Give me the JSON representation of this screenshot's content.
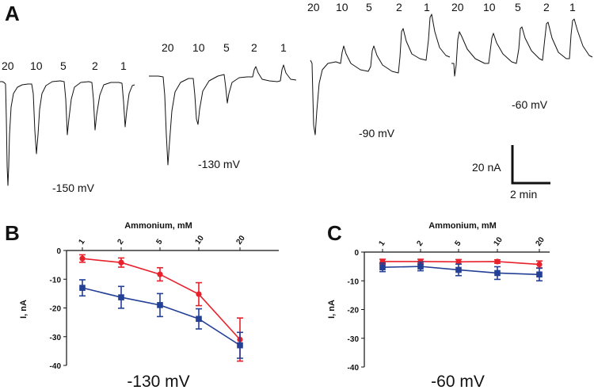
{
  "panel_letters": {
    "a": "A",
    "b": "B",
    "c": "C"
  },
  "panel_a": {
    "traces": [
      {
        "voltage": "-150 mV",
        "concentrations": [
          "20",
          "10",
          "5",
          "2",
          "1"
        ],
        "direction": "inward"
      },
      {
        "voltage": "-130 mV",
        "concentrations": [
          "20",
          "10",
          "5",
          "2",
          "1"
        ],
        "direction": "inward"
      },
      {
        "voltage": "-90 mV",
        "concentrations": [
          "20",
          "10",
          "5",
          "2",
          "1"
        ],
        "direction": "mixed"
      },
      {
        "voltage": "-60 mV",
        "concentrations": [
          "20",
          "10",
          "5",
          "2",
          "1"
        ],
        "direction": "outward"
      }
    ],
    "scale_bar": {
      "current": "20 nA",
      "time": "2 min"
    }
  },
  "chart_data": [
    {
      "type": "line",
      "panel": "B",
      "xlabel": "Ammonium, mM",
      "ylabel": "I, nA",
      "categories": [
        "1",
        "2",
        "5",
        "10",
        "20"
      ],
      "ylim": [
        -40,
        0
      ],
      "yticks": [
        "0",
        "-10",
        "-20",
        "-30",
        "-40"
      ],
      "grid": false,
      "series": [
        {
          "color": "#e8212b",
          "marker": "circle",
          "values": [
            -2.8,
            -4.2,
            -8.3,
            -15.2,
            -31.0
          ],
          "errors": [
            1.3,
            1.6,
            2.3,
            4.0,
            7.5
          ]
        },
        {
          "color": "#233f96",
          "marker": "square",
          "values": [
            -13.0,
            -16.3,
            -19.0,
            -23.8,
            -33.0
          ],
          "errors": [
            2.8,
            3.8,
            4.0,
            3.5,
            4.5
          ]
        }
      ],
      "caption": "-130 mV"
    },
    {
      "type": "line",
      "panel": "C",
      "xlabel": "Ammonium, mM",
      "ylabel": "I, nA",
      "categories": [
        "1",
        "2",
        "5",
        "10",
        "20"
      ],
      "ylim": [
        -40,
        0
      ],
      "yticks": [
        "0",
        "-10",
        "-20",
        "-30",
        "-40"
      ],
      "grid": false,
      "series": [
        {
          "color": "#e8212b",
          "marker": "circle",
          "values": [
            -3.3,
            -3.3,
            -3.4,
            -3.3,
            -4.3
          ],
          "errors": [
            0.8,
            0.8,
            0.8,
            0.6,
            1.2
          ]
        },
        {
          "color": "#233f96",
          "marker": "square",
          "values": [
            -5.3,
            -5.0,
            -6.2,
            -7.3,
            -7.8
          ],
          "errors": [
            1.5,
            1.5,
            2.0,
            2.2,
            2.2
          ]
        }
      ],
      "caption": "-60 mV"
    }
  ]
}
